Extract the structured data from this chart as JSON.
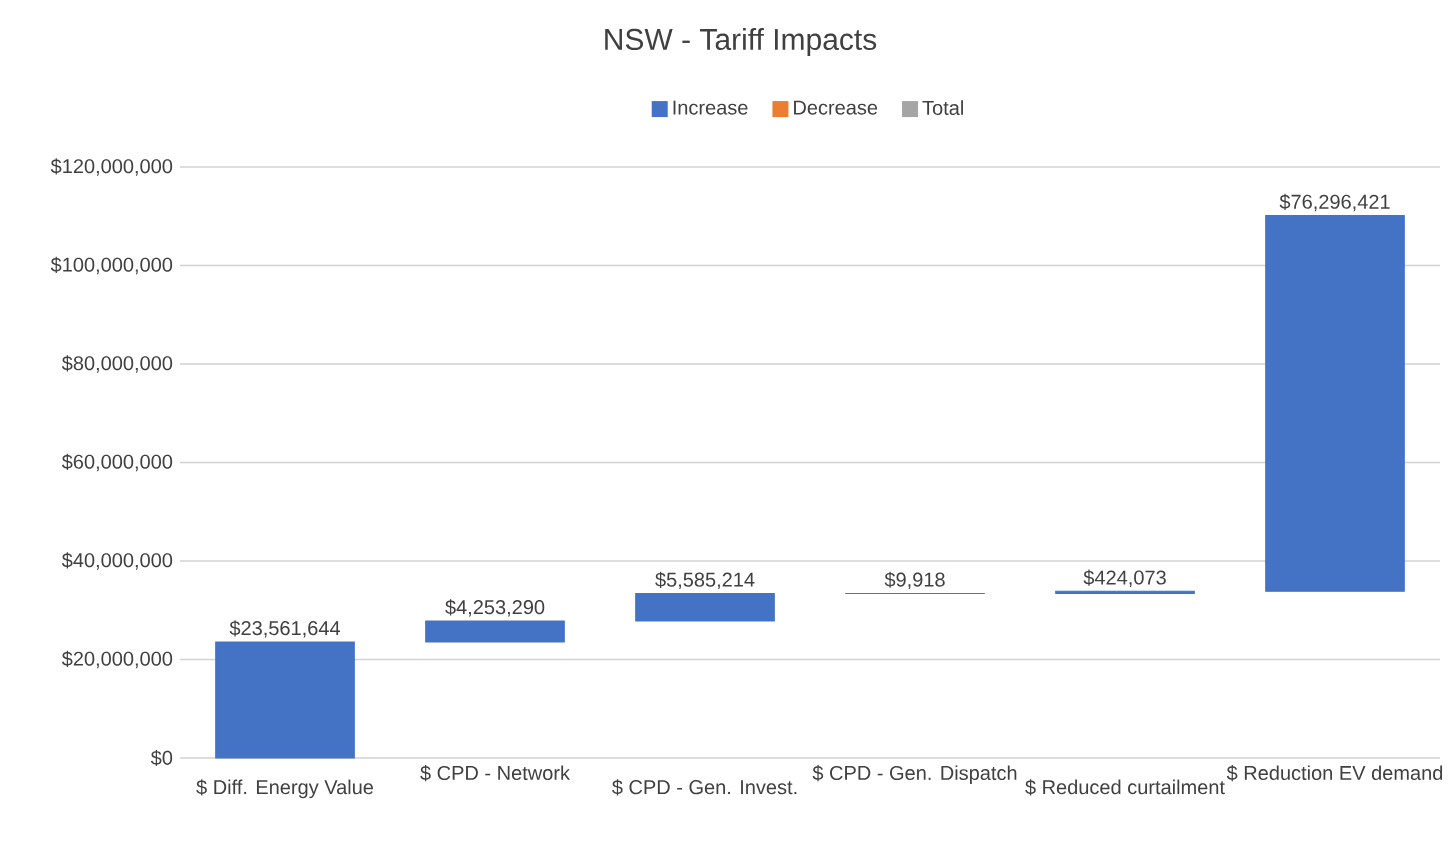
{
  "chart_data": {
    "type": "bar",
    "title": "NSW - Tariff Impacts",
    "categories": [
      "$ Diff. Energy Value",
      "$ CPD - Network",
      "$ CPD - Gen. Invest.",
      "$ CPD - Gen. Dispatch",
      "$ Reduced curtailment",
      "$ Reduction EV demand"
    ],
    "series": [
      {
        "name": "Increase",
        "color": "#4472c4",
        "values": [
          23561644,
          4253290,
          5585214,
          9918,
          424073,
          76296421
        ],
        "base": [
          0,
          23561644,
          27814934,
          33400148,
          33410066,
          33834139
        ],
        "value_labels": [
          "$23,561,644",
          "$4,253,290",
          "$5,585,214",
          "$9,918",
          "$424,073",
          "$76,296,421"
        ]
      },
      {
        "name": "Decrease",
        "color": "#ed7d31",
        "values": [
          null,
          null,
          null,
          null,
          null,
          null
        ]
      },
      {
        "name": "Total",
        "color": "#a5a5a5",
        "values": [
          null,
          null,
          null,
          null,
          null,
          null
        ]
      }
    ],
    "ylim": [
      0,
      120000000
    ],
    "yticks": [
      {
        "value": 0,
        "label": "$0"
      },
      {
        "value": 20000000,
        "label": "$20,000,000"
      },
      {
        "value": 40000000,
        "label": "$40,000,000"
      },
      {
        "value": 60000000,
        "label": "$60,000,000"
      },
      {
        "value": 80000000,
        "label": "$80,000,000"
      },
      {
        "value": 100000000,
        "label": "$100,000,000"
      },
      {
        "value": 120000000,
        "label": "$120,000,000"
      }
    ],
    "grid": "y",
    "legend": "top"
  }
}
